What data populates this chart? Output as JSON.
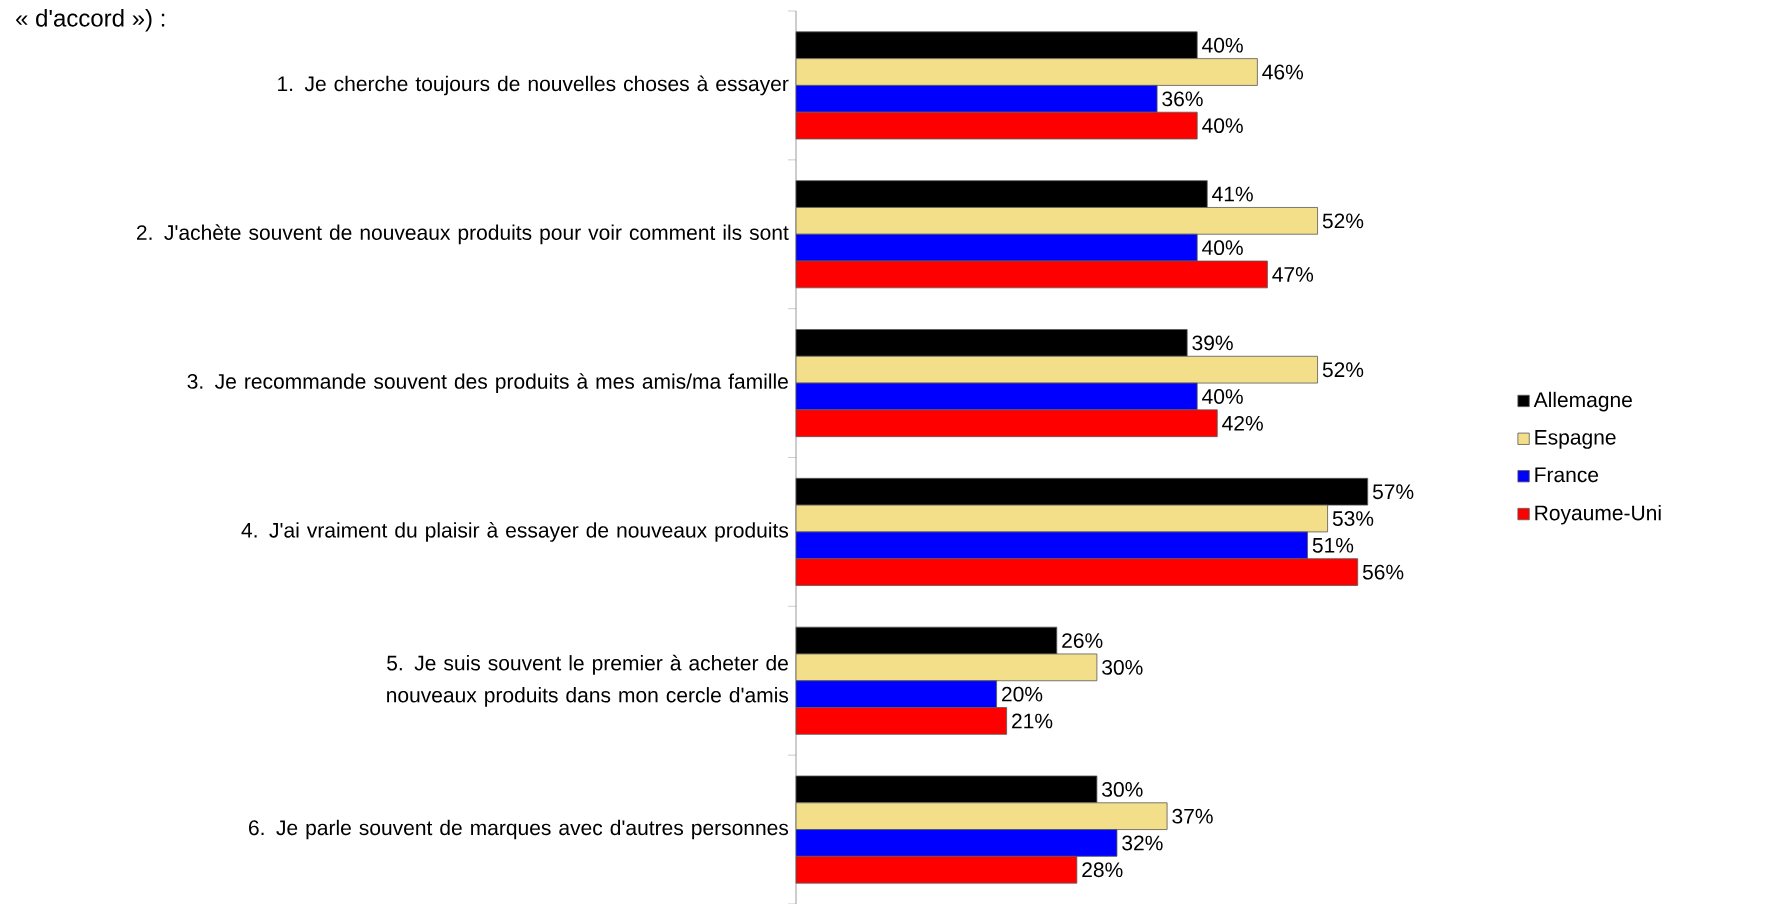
{
  "chart_data": {
    "type": "bar",
    "orientation": "horizontal",
    "title": "« d'accord ») :",
    "categories": [
      "1. Je cherche toujours de nouvelles choses à essayer",
      "2. J'achète souvent de nouveaux produits pour voir comment ils sont",
      "3. Je recommande souvent des produits à mes amis/ma famille",
      "4. J'ai vraiment du plaisir à essayer de nouveaux produits",
      "5. Je suis souvent le premier à acheter de nouveaux produits dans mon cercle d'amis",
      "6. Je parle souvent de marques avec d'autres personnes"
    ],
    "series": [
      {
        "name": "Allemagne",
        "color": "#000000",
        "values": [
          40,
          41,
          39,
          57,
          26,
          30
        ],
        "value_labels": [
          "40%",
          "41%",
          "39%",
          "57%",
          "26%",
          "30%"
        ]
      },
      {
        "name": "Espagne",
        "color": "#f3de8a",
        "values": [
          46,
          52,
          52,
          53,
          30,
          37
        ],
        "value_labels": [
          "46%",
          "52%",
          "52%",
          "53%",
          "30%",
          "37%"
        ]
      },
      {
        "name": "France",
        "color": "#0000ff",
        "values": [
          36,
          40,
          40,
          51,
          20,
          32
        ],
        "value_labels": [
          "36%",
          "40%",
          "40%",
          "51%",
          "20%",
          "32%"
        ]
      },
      {
        "name": "Royaume-Uni",
        "color": "#ff0000",
        "values": [
          40,
          47,
          42,
          56,
          21,
          28
        ],
        "value_labels": [
          "40%",
          "47%",
          "42%",
          "56%",
          "21%",
          "28%"
        ]
      }
    ],
    "legend": "right"
  }
}
